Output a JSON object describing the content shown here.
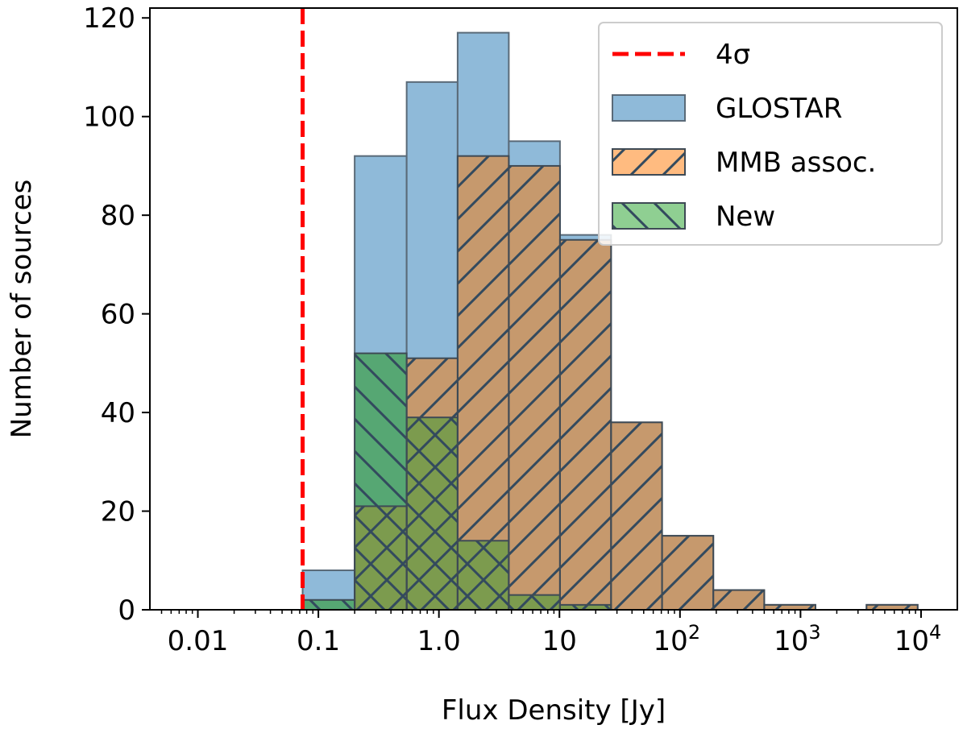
{
  "chart_data": {
    "type": "bar",
    "title": "",
    "xlabel": "Flux Density [Jy]",
    "ylabel": "Number of sources",
    "xscale": "log",
    "xlim": [
      0.004,
      20000
    ],
    "ylim": [
      0,
      122
    ],
    "grid": false,
    "legend_position": "top-right",
    "bin_edges": [
      0.074,
      0.2,
      0.54,
      1.43,
      3.8,
      10.1,
      26.8,
      71,
      189,
      500,
      1330,
      3530,
      9370
    ],
    "series": [
      {
        "name": "GLOSTAR",
        "style": "fill",
        "color": "#8fbad9",
        "values": [
          8,
          92,
          107,
          117,
          95,
          76,
          38,
          15,
          4,
          1,
          0,
          1
        ]
      },
      {
        "name": "MMB assoc.",
        "style": "hatch-forward",
        "color": "#c6996d",
        "values": [
          0,
          21,
          51,
          92,
          90,
          75,
          38,
          15,
          4,
          1,
          0,
          1
        ]
      },
      {
        "name": "New",
        "style": "hatch-back",
        "color": "#56a773",
        "overlap_color": "#7c9b4e",
        "values": [
          2,
          52,
          39,
          14,
          3,
          1,
          0,
          0,
          0,
          0,
          0,
          0
        ]
      }
    ],
    "threshold": {
      "label": "4σ",
      "value": 0.074,
      "color": "#ff0000"
    },
    "y_ticks": [
      {
        "value": 0,
        "label": "0"
      },
      {
        "value": 20,
        "label": "20"
      },
      {
        "value": 40,
        "label": "40"
      },
      {
        "value": 60,
        "label": "60"
      },
      {
        "value": 80,
        "label": "80"
      },
      {
        "value": 100,
        "label": "100"
      },
      {
        "value": 120,
        "label": "120"
      }
    ],
    "x_ticks": [
      {
        "value": 0.01,
        "label": "0.01",
        "base": "",
        "exp": ""
      },
      {
        "value": 0.1,
        "label": "0.1",
        "base": "",
        "exp": ""
      },
      {
        "value": 1,
        "label": "1.0",
        "base": "",
        "exp": ""
      },
      {
        "value": 10,
        "label": "10",
        "base": "",
        "exp": ""
      },
      {
        "value": 100,
        "label": "",
        "base": "10",
        "exp": "2"
      },
      {
        "value": 1000,
        "label": "",
        "base": "10",
        "exp": "3"
      },
      {
        "value": 10000,
        "label": "",
        "base": "10",
        "exp": "4"
      }
    ],
    "legend": [
      {
        "key": "threshold",
        "label": "4σ"
      },
      {
        "key": "GLOSTAR",
        "label": "GLOSTAR"
      },
      {
        "key": "MMB",
        "label": "MMB assoc."
      },
      {
        "key": "New",
        "label": "New"
      }
    ]
  }
}
